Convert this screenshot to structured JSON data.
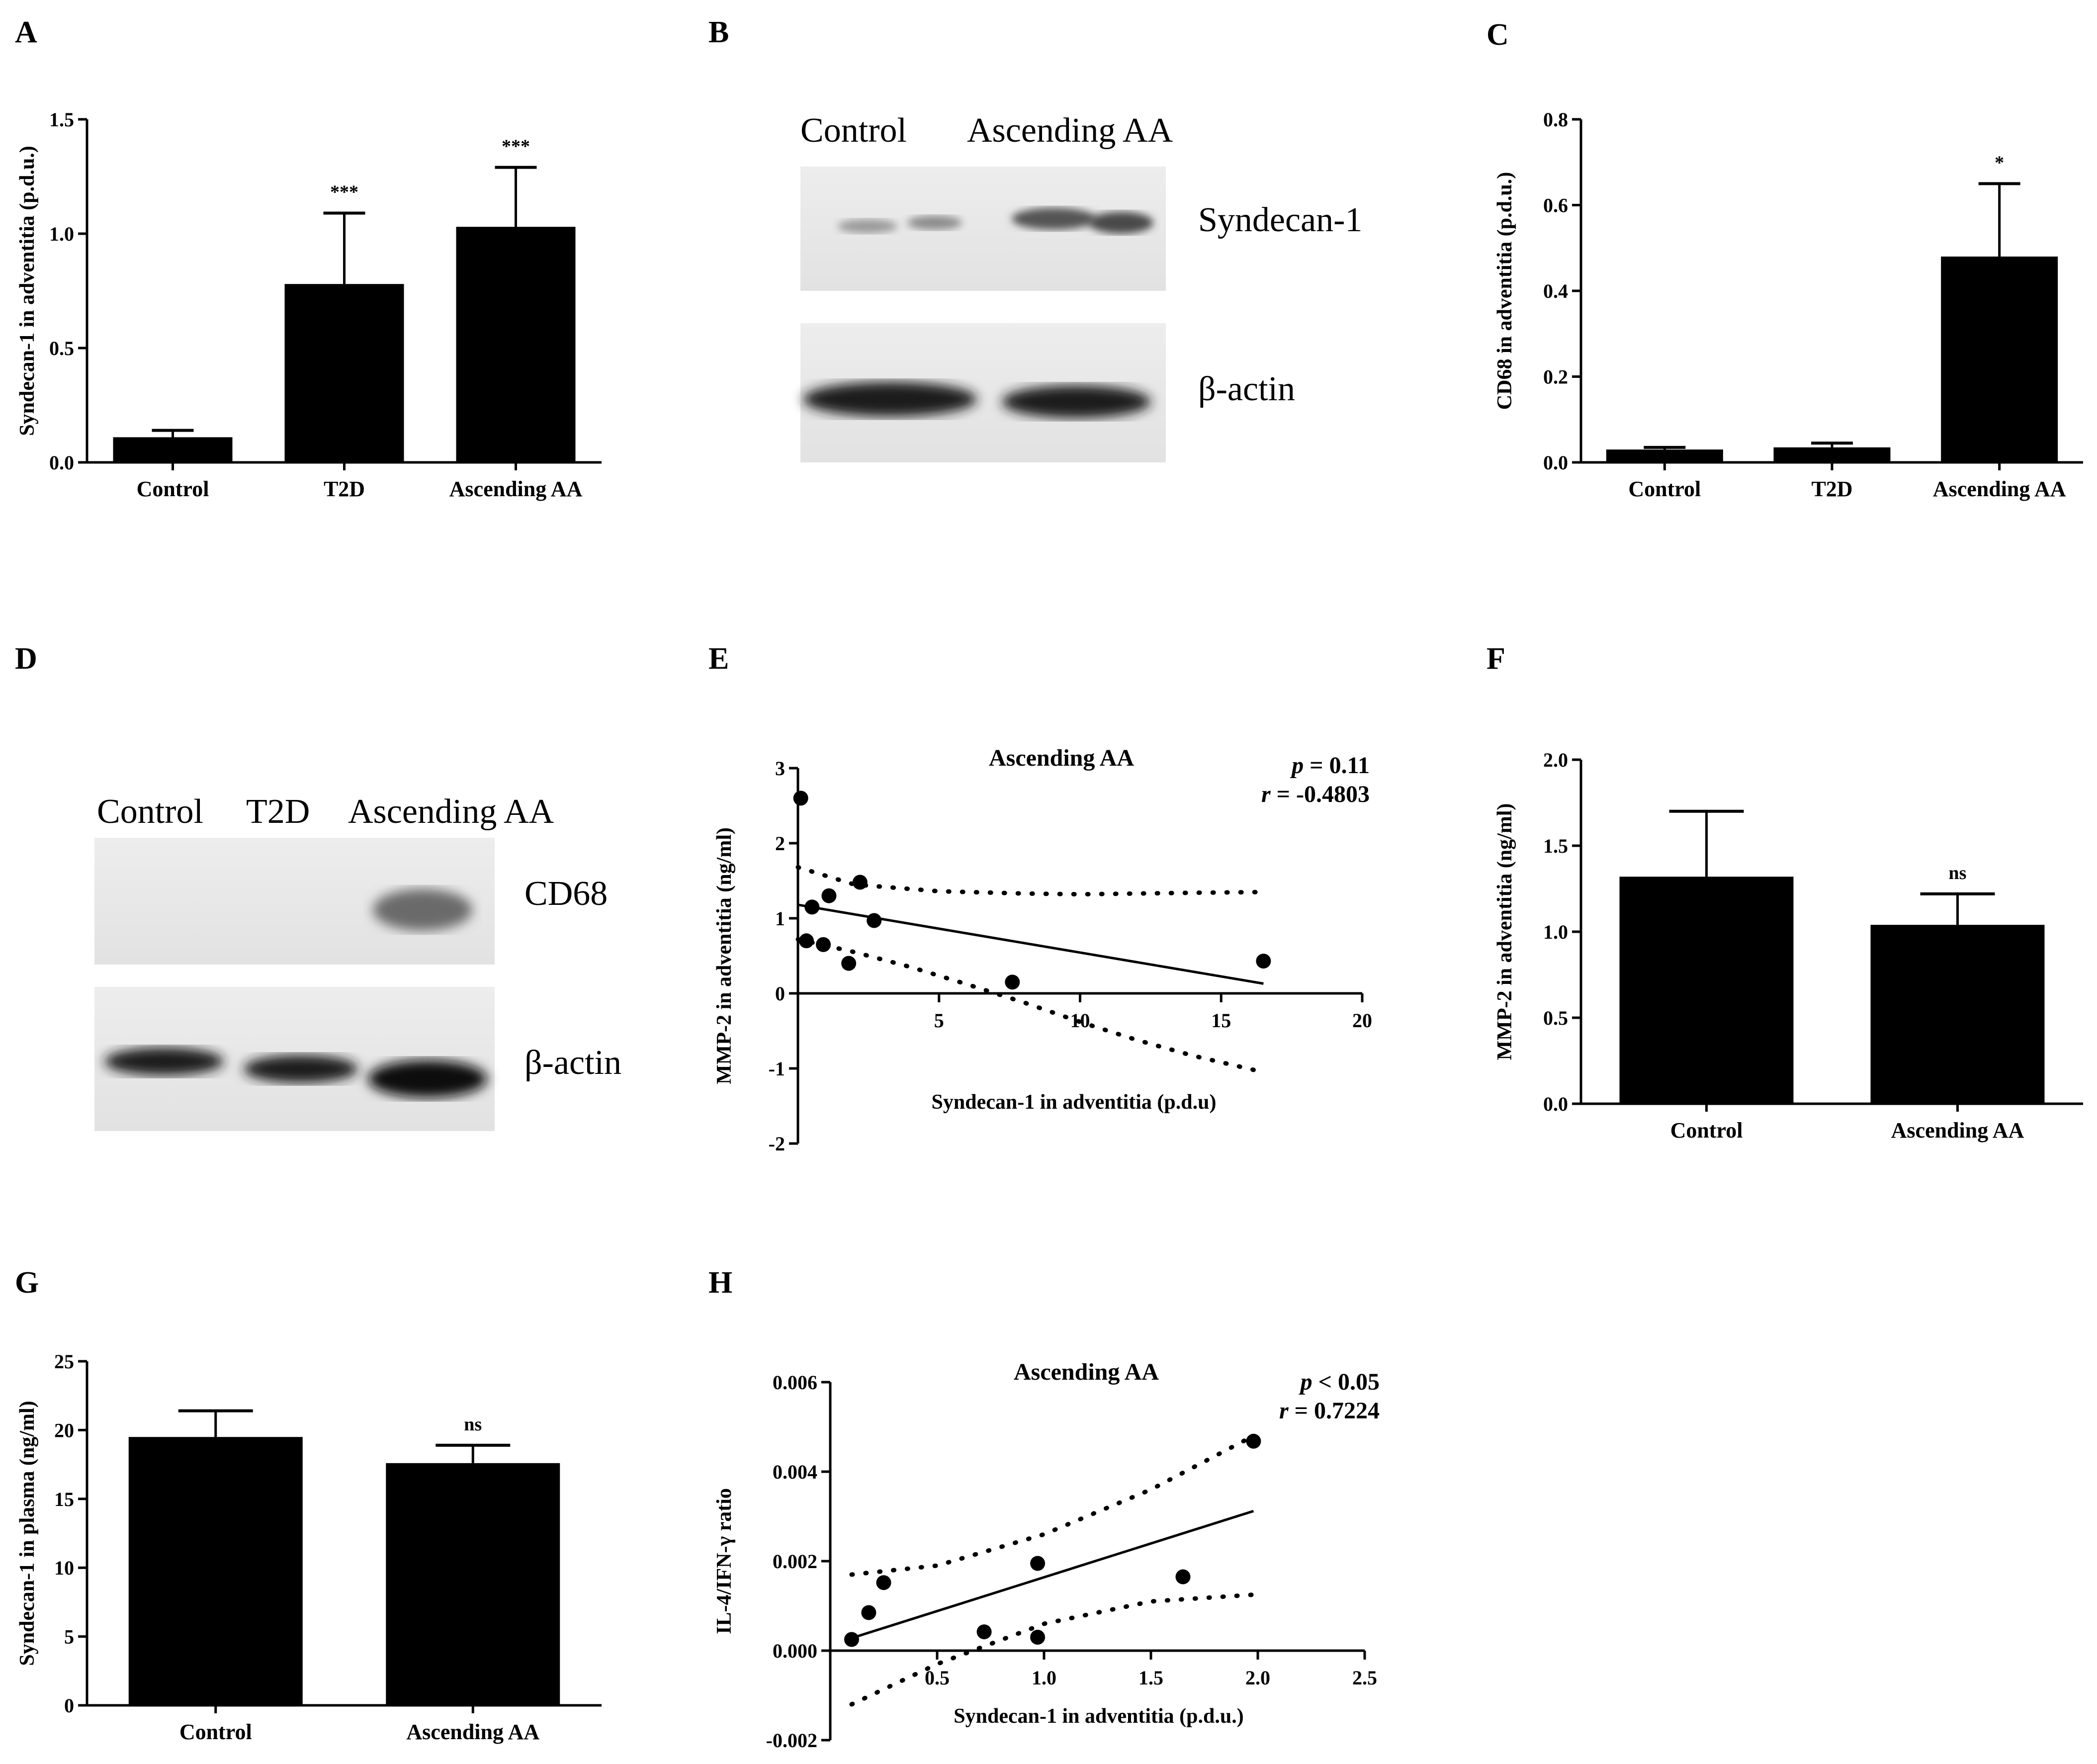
{
  "panel_labels": [
    "A",
    "B",
    "C",
    "D",
    "E",
    "F",
    "G",
    "H"
  ],
  "chart_data": [
    {
      "panel": "A",
      "type": "bar",
      "categories": [
        "Control",
        "T2D",
        "Ascending AA"
      ],
      "values": [
        0.11,
        0.78,
        1.03
      ],
      "errors": [
        0.03,
        0.31,
        0.26
      ],
      "annotations": [
        "",
        "***",
        "***"
      ],
      "ylabel": "Syndecan-1 in adventitia (p.d.u.)",
      "xlabel": "",
      "ylim": [
        0,
        1.5
      ],
      "yticks": [
        "0.0",
        "0.5",
        "1.0",
        "1.5"
      ],
      "grid": false,
      "bar_color": "#000000"
    },
    {
      "panel": "C",
      "type": "bar",
      "categories": [
        "Control",
        "T2D",
        "Ascending AA"
      ],
      "values": [
        0.03,
        0.035,
        0.48
      ],
      "errors": [
        0.005,
        0.01,
        0.17
      ],
      "annotations": [
        "",
        "",
        "*"
      ],
      "ylabel": "CD68 in adventitia (p.d.u.)",
      "xlabel": "",
      "ylim": [
        0,
        0.8
      ],
      "yticks": [
        "0.0",
        "0.2",
        "0.4",
        "0.6",
        "0.8"
      ],
      "grid": false,
      "bar_color": "#000000"
    },
    {
      "panel": "E",
      "type": "scatter",
      "title": "Ascending AA",
      "stats": {
        "p_label": "p",
        "p_text": " = 0.11",
        "r_label": "r",
        "r_text": " = -0.4803"
      },
      "x": [
        0.1,
        0.3,
        0.5,
        0.9,
        1.1,
        1.8,
        2.2,
        2.7,
        7.6,
        16.5
      ],
      "y": [
        2.6,
        0.7,
        1.15,
        0.65,
        1.3,
        0.4,
        1.48,
        0.97,
        0.15,
        0.43
      ],
      "fit": {
        "x": [
          0,
          16.5
        ],
        "y": [
          1.18,
          0.13
        ]
      },
      "ci_upper": {
        "x": [
          0,
          2,
          5,
          8,
          10,
          12,
          14,
          16.5
        ],
        "y": [
          1.68,
          1.45,
          1.36,
          1.33,
          1.32,
          1.33,
          1.34,
          1.35
        ]
      },
      "ci_lower": {
        "x": [
          0,
          2,
          4,
          6,
          8,
          10,
          12,
          14,
          16.5
        ],
        "y": [
          0.72,
          0.55,
          0.35,
          0.12,
          -0.12,
          -0.38,
          -0.62,
          -0.83,
          -1.05
        ]
      },
      "xlabel": "Syndecan-1 in adventitia (p.d.u)",
      "ylabel": "MMP-2 in adventitia (ng/ml)",
      "xlim": [
        0,
        20
      ],
      "ylim": [
        -2,
        3
      ],
      "xticks": [
        "5",
        "10",
        "15",
        "20"
      ],
      "yticks": [
        "-2",
        "-1",
        "0",
        "1",
        "2",
        "3"
      ],
      "grid": false
    },
    {
      "panel": "F",
      "type": "bar",
      "categories": [
        "Control",
        "Ascending AA"
      ],
      "values": [
        1.32,
        1.04
      ],
      "errors": [
        0.38,
        0.18
      ],
      "annotations": [
        "",
        "ns"
      ],
      "ylabel": "MMP-2 in adventitia (ng/ml)",
      "xlabel": "",
      "ylim": [
        0,
        2.0
      ],
      "yticks": [
        "0.0",
        "0.5",
        "1.0",
        "1.5",
        "2.0"
      ],
      "grid": false,
      "bar_color": "#000000"
    },
    {
      "panel": "G",
      "type": "bar",
      "categories": [
        "Control",
        "Ascending AA"
      ],
      "values": [
        19.5,
        17.6
      ],
      "errors": [
        1.9,
        1.3
      ],
      "annotations": [
        "",
        "ns"
      ],
      "ylabel": "Syndecan-1 in plasma (ng/ml)",
      "xlabel": "",
      "ylim": [
        0,
        25
      ],
      "yticks": [
        "0",
        "5",
        "10",
        "15",
        "20",
        "25"
      ],
      "grid": false,
      "bar_color": "#000000"
    },
    {
      "panel": "H",
      "type": "scatter",
      "title": "Ascending AA",
      "stats": {
        "p_label": "p",
        "p_text": " < 0.05",
        "r_label": "r",
        "r_text": " = 0.7224"
      },
      "x": [
        0.1,
        0.18,
        0.25,
        0.72,
        0.97,
        0.97,
        1.65,
        1.98
      ],
      "y": [
        0.00025,
        0.00085,
        0.00152,
        0.00042,
        0.0003,
        0.00195,
        0.00165,
        0.00468
      ],
      "fit": {
        "x": [
          0.1,
          1.98
        ],
        "y": [
          0.00028,
          0.00312
        ]
      },
      "ci_upper": {
        "x": [
          0.1,
          0.5,
          1.0,
          1.5,
          1.98
        ],
        "y": [
          0.0017,
          0.0019,
          0.0026,
          0.0036,
          0.0048
        ]
      },
      "ci_lower": {
        "x": [
          0.1,
          0.5,
          1.0,
          1.5,
          1.98
        ],
        "y": [
          -0.0012,
          -0.0003,
          0.0006,
          0.0011,
          0.00125
        ]
      },
      "xlabel": "Syndecan-1 in adventitia (p.d.u.)",
      "ylabel": "IL-4/IFN-γ ratio",
      "xlim": [
        0,
        2.5
      ],
      "ylim": [
        -0.002,
        0.006
      ],
      "xticks": [
        "0.5",
        "1.0",
        "1.5",
        "2.0",
        "2.5"
      ],
      "yticks": [
        "-0.002",
        "0.000",
        "0.002",
        "0.004",
        "0.006"
      ],
      "grid": false
    }
  ],
  "blots": {
    "B": {
      "lanes": [
        "Control",
        "Ascending AA"
      ],
      "bands": [
        "Syndecan-1",
        "β-actin"
      ]
    },
    "D": {
      "lanes": [
        "Control",
        "T2D",
        "Ascending AA"
      ],
      "bands": [
        "CD68",
        "β-actin"
      ]
    }
  }
}
